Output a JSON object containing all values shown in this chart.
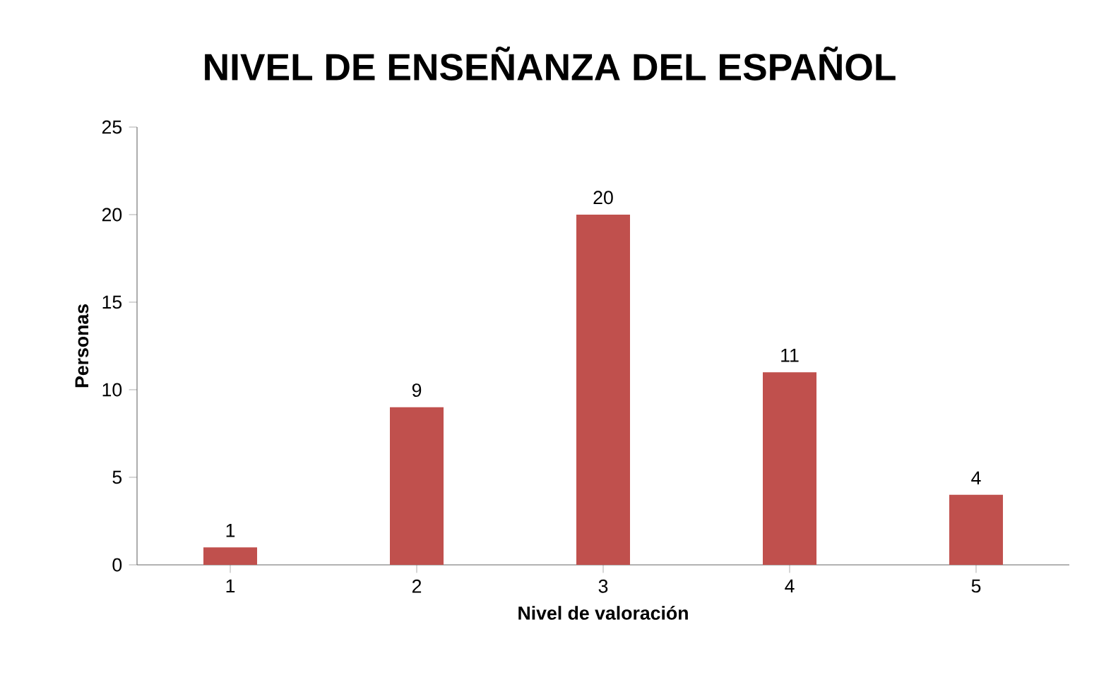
{
  "chart_data": {
    "type": "bar",
    "title": "NIVEL DE ENSEÑANZA DEL ESPAÑOL",
    "xlabel": "Nivel de valoración",
    "ylabel": "Personas",
    "categories": [
      "1",
      "2",
      "3",
      "4",
      "5"
    ],
    "values": [
      1,
      9,
      20,
      11,
      4
    ],
    "color": "#c0504d",
    "ylim": [
      0,
      25
    ],
    "yticks": [
      0,
      5,
      10,
      15,
      20,
      25
    ],
    "data_labels": true
  }
}
